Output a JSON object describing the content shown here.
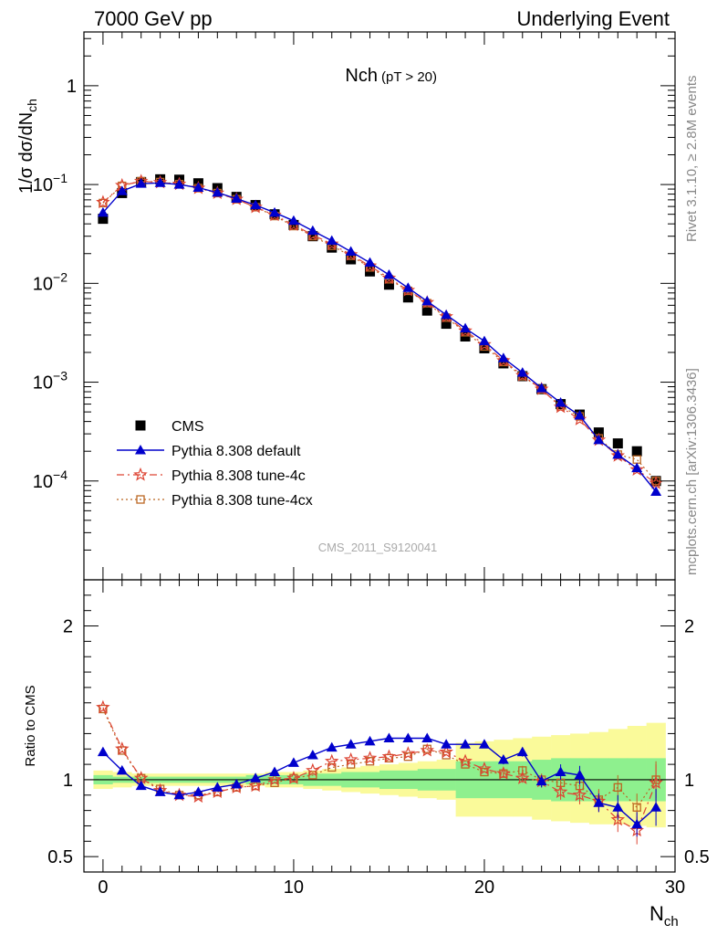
{
  "header": {
    "left": "7000 GeV pp",
    "right": "Underlying Event"
  },
  "side": {
    "rivet": "Rivet 3.1.10, ≥ 2.8M events",
    "mcplots": "mcplots.cern.ch [arXiv:1306.3436]"
  },
  "watermark": "CMS_2011_S9120041",
  "colors": {
    "cms": "#000000",
    "default": "#0000cc",
    "tune4c": "#dd4433",
    "tune4cx": "#bb6622",
    "band_inner": "#8ef08e",
    "band_outer": "#fafa9a"
  },
  "chart_data": [
    {
      "type": "scatter",
      "title": "Nch",
      "title_suffix": "(pT > 20)",
      "ylabel": "1/σ dσ/dN",
      "ylabel_sub": "ch",
      "yscale": "log",
      "xlim": [
        -1,
        30
      ],
      "ylim": [
        1e-05,
        3.5
      ],
      "y_ticks": [
        {
          "v": 1,
          "label": "1"
        },
        {
          "v": 0.1,
          "label": "10",
          "exp": "−1"
        },
        {
          "v": 0.01,
          "label": "10",
          "exp": "−2"
        },
        {
          "v": 0.001,
          "label": "10",
          "exp": "−3"
        },
        {
          "v": 0.0001,
          "label": "10",
          "exp": "−4"
        }
      ],
      "legend_position": "bottom-left",
      "series": [
        {
          "name": "CMS",
          "key": "cms",
          "x": [
            0,
            1,
            2,
            3,
            4,
            5,
            6,
            7,
            8,
            9,
            10,
            11,
            12,
            13,
            14,
            15,
            16,
            17,
            18,
            19,
            20,
            21,
            22,
            23,
            24,
            25,
            26,
            27,
            28,
            29
          ],
          "y": [
            0.045,
            0.082,
            0.106,
            0.113,
            0.112,
            0.103,
            0.092,
            0.075,
            0.062,
            0.05,
            0.039,
            0.03,
            0.023,
            0.0175,
            0.0132,
            0.0097,
            0.0072,
            0.0053,
            0.0039,
            0.0029,
            0.0022,
            0.00155,
            0.00115,
            0.00085,
            0.0006,
            0.00047,
            0.00031,
            0.00024,
            0.0002,
            0.0001
          ]
        },
        {
          "name": "Pythia 8.308 default",
          "key": "default",
          "x": [
            0,
            1,
            2,
            3,
            4,
            5,
            6,
            7,
            8,
            9,
            10,
            11,
            12,
            13,
            14,
            15,
            16,
            17,
            18,
            19,
            20,
            21,
            22,
            23,
            24,
            25,
            26,
            27,
            28,
            29
          ],
          "y": [
            0.052,
            0.086,
            0.102,
            0.104,
            0.1,
            0.093,
            0.083,
            0.072,
            0.062,
            0.052,
            0.043,
            0.034,
            0.027,
            0.021,
            0.0162,
            0.0122,
            0.009,
            0.0066,
            0.0048,
            0.0035,
            0.0026,
            0.00175,
            0.00125,
            0.00087,
            0.00062,
            0.00046,
            0.00026,
            0.000185,
            0.000135,
            7.8e-05
          ]
        },
        {
          "name": "Pythia 8.308 tune-4c",
          "key": "tune4c",
          "x": [
            0,
            1,
            2,
            3,
            4,
            5,
            6,
            7,
            8,
            9,
            10,
            11,
            12,
            13,
            14,
            15,
            16,
            17,
            18,
            19,
            20,
            21,
            22,
            23,
            24,
            25,
            26,
            27,
            28,
            29
          ],
          "y": [
            0.066,
            0.098,
            0.108,
            0.105,
            0.101,
            0.092,
            0.082,
            0.071,
            0.059,
            0.049,
            0.039,
            0.031,
            0.025,
            0.0195,
            0.015,
            0.0113,
            0.0085,
            0.0064,
            0.0046,
            0.0033,
            0.0024,
            0.00165,
            0.00117,
            0.00085,
            0.00056,
            0.00042,
            0.00026,
            0.00018,
            0.00013,
            9.5e-05
          ]
        },
        {
          "name": "Pythia 8.308 tune-4cx",
          "key": "tune4cx",
          "x": [
            0,
            1,
            2,
            3,
            4,
            5,
            6,
            7,
            8,
            9,
            10,
            11,
            12,
            13,
            14,
            15,
            16,
            17,
            18,
            19,
            20,
            21,
            22,
            23,
            24,
            25,
            26,
            27,
            28,
            29
          ],
          "y": [
            0.065,
            0.097,
            0.108,
            0.106,
            0.101,
            0.092,
            0.082,
            0.071,
            0.059,
            0.048,
            0.038,
            0.03,
            0.024,
            0.019,
            0.0145,
            0.011,
            0.0084,
            0.0063,
            0.0045,
            0.0032,
            0.0023,
            0.0016,
            0.00115,
            0.00085,
            0.00057,
            0.00045,
            0.00027,
            0.000185,
            0.000165,
            0.0001
          ]
        }
      ]
    },
    {
      "type": "line",
      "ylabel": "Ratio to CMS",
      "xlabel": "N",
      "xlabel_sub": "ch",
      "xlim": [
        -1,
        30
      ],
      "ylim": [
        0.4,
        2.3
      ],
      "x_ticks": [
        0,
        10,
        20,
        30
      ],
      "y_ticks": [
        {
          "v": 0.5,
          "label": "0.5"
        },
        {
          "v": 1,
          "label": "1"
        },
        {
          "v": 2,
          "label": "2"
        }
      ],
      "band_inner": {
        "x": [
          0,
          1,
          2,
          3,
          4,
          5,
          6,
          7,
          8,
          9,
          10,
          11,
          12,
          13,
          14,
          15,
          16,
          17,
          18,
          19,
          20,
          21,
          22,
          23,
          24,
          25,
          26,
          27,
          28,
          29
        ],
        "lo": [
          0.97,
          0.98,
          0.98,
          0.98,
          0.98,
          0.98,
          0.98,
          0.98,
          0.97,
          0.97,
          0.97,
          0.96,
          0.96,
          0.95,
          0.95,
          0.94,
          0.94,
          0.93,
          0.93,
          0.88,
          0.88,
          0.88,
          0.88,
          0.87,
          0.86,
          0.86,
          0.86,
          0.86,
          0.86,
          0.86
        ],
        "hi": [
          1.03,
          1.02,
          1.02,
          1.02,
          1.02,
          1.02,
          1.02,
          1.02,
          1.03,
          1.03,
          1.03,
          1.04,
          1.04,
          1.05,
          1.05,
          1.06,
          1.06,
          1.07,
          1.07,
          1.12,
          1.12,
          1.12,
          1.12,
          1.13,
          1.14,
          1.14,
          1.14,
          1.14,
          1.14,
          1.14
        ]
      },
      "band_outer": {
        "x": [
          0,
          1,
          2,
          3,
          4,
          5,
          6,
          7,
          8,
          9,
          10,
          11,
          12,
          13,
          14,
          15,
          16,
          17,
          18,
          19,
          20,
          21,
          22,
          23,
          24,
          25,
          26,
          27,
          28,
          29
        ],
        "lo": [
          0.94,
          0.95,
          0.96,
          0.96,
          0.96,
          0.96,
          0.96,
          0.96,
          0.96,
          0.95,
          0.95,
          0.94,
          0.93,
          0.92,
          0.91,
          0.9,
          0.89,
          0.88,
          0.87,
          0.76,
          0.76,
          0.76,
          0.76,
          0.74,
          0.73,
          0.72,
          0.71,
          0.71,
          0.7,
          0.69
        ],
        "hi": [
          1.06,
          1.05,
          1.04,
          1.04,
          1.04,
          1.04,
          1.04,
          1.04,
          1.04,
          1.05,
          1.05,
          1.06,
          1.07,
          1.08,
          1.09,
          1.1,
          1.11,
          1.12,
          1.13,
          1.24,
          1.25,
          1.26,
          1.27,
          1.28,
          1.29,
          1.3,
          1.31,
          1.33,
          1.35,
          1.37
        ]
      },
      "series": [
        {
          "name": "Pythia 8.308 default",
          "key": "default",
          "x": [
            0,
            1,
            2,
            3,
            4,
            5,
            6,
            7,
            8,
            9,
            10,
            11,
            12,
            13,
            14,
            15,
            16,
            17,
            18,
            19,
            20,
            21,
            22,
            23,
            24,
            25,
            26,
            27,
            28,
            29
          ],
          "y": [
            1.18,
            1.06,
            0.96,
            0.92,
            0.9,
            0.92,
            0.95,
            0.97,
            1.01,
            1.05,
            1.11,
            1.16,
            1.21,
            1.23,
            1.25,
            1.27,
            1.27,
            1.27,
            1.23,
            1.23,
            1.23,
            1.13,
            1.18,
            0.99,
            1.05,
            1.03,
            0.85,
            0.82,
            0.71,
            0.82
          ],
          "err": [
            0,
            0,
            0,
            0,
            0,
            0,
            0,
            0,
            0,
            0,
            0,
            0,
            0,
            0,
            0,
            0,
            0,
            0,
            0,
            0,
            0,
            0.03,
            0.03,
            0.04,
            0.05,
            0.06,
            0.06,
            0.08,
            0.08,
            0.12
          ]
        },
        {
          "name": "Pythia 8.308 tune-4c",
          "key": "tune4c",
          "x": [
            0,
            1,
            2,
            3,
            4,
            5,
            6,
            7,
            8,
            9,
            10,
            11,
            12,
            13,
            14,
            15,
            16,
            17,
            18,
            19,
            20,
            21,
            22,
            23,
            24,
            25,
            26,
            27,
            28,
            29
          ],
          "y": [
            1.47,
            1.2,
            1.01,
            0.93,
            0.9,
            0.89,
            0.92,
            0.95,
            0.96,
            1.0,
            1.01,
            1.06,
            1.12,
            1.13,
            1.14,
            1.15,
            1.17,
            1.19,
            1.18,
            1.12,
            1.07,
            1.04,
            1.01,
            0.99,
            0.92,
            0.9,
            0.86,
            0.74,
            0.67,
            0.98
          ],
          "err": [
            0,
            0,
            0,
            0,
            0,
            0,
            0,
            0,
            0,
            0,
            0,
            0,
            0,
            0,
            0,
            0,
            0,
            0,
            0,
            0,
            0,
            0.02,
            0.03,
            0.04,
            0.05,
            0.06,
            0.07,
            0.08,
            0.09,
            0.12
          ]
        },
        {
          "name": "Pythia 8.308 tune-4cx",
          "key": "tune4cx",
          "x": [
            0,
            1,
            2,
            3,
            4,
            5,
            6,
            7,
            8,
            9,
            10,
            11,
            12,
            13,
            14,
            15,
            16,
            17,
            18,
            19,
            20,
            21,
            22,
            23,
            24,
            25,
            26,
            27,
            28,
            29
          ],
          "y": [
            1.46,
            1.19,
            1.01,
            0.94,
            0.9,
            0.9,
            0.92,
            0.95,
            0.96,
            0.98,
            1.01,
            1.03,
            1.08,
            1.1,
            1.12,
            1.14,
            1.15,
            1.2,
            1.16,
            1.1,
            1.05,
            1.04,
            1.06,
            1.0,
            0.98,
            0.96,
            0.87,
            0.95,
            0.82,
            1.0
          ],
          "err": [
            0,
            0,
            0,
            0,
            0,
            0,
            0,
            0,
            0,
            0,
            0,
            0,
            0,
            0,
            0,
            0,
            0,
            0,
            0,
            0,
            0,
            0.02,
            0.03,
            0.04,
            0.05,
            0.06,
            0.07,
            0.08,
            0.09,
            0.12
          ]
        }
      ]
    }
  ]
}
